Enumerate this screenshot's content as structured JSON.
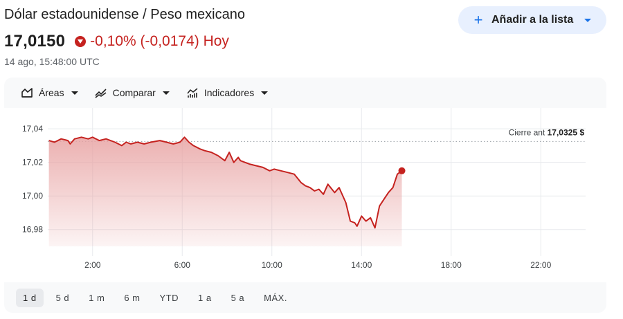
{
  "header": {
    "title": "Dólar estadounidense / Peso mexicano",
    "price": "17,0150",
    "change": "-0,10% (-0,0174) Hoy",
    "timestamp": "14 ago, 15:48:00 UTC",
    "add_button_label": "Añadir a la lista",
    "add_icon": "plus-icon"
  },
  "toolbar": {
    "items": [
      {
        "label": "Áreas",
        "icon": "area-chart-icon"
      },
      {
        "label": "Comparar",
        "icon": "compare-icon"
      },
      {
        "label": "Indicadores",
        "icon": "indicators-icon"
      }
    ]
  },
  "ranges": [
    {
      "label": "1 d",
      "active": true
    },
    {
      "label": "5 d",
      "active": false
    },
    {
      "label": "1 m",
      "active": false
    },
    {
      "label": "6 m",
      "active": false
    },
    {
      "label": "YTD",
      "active": false
    },
    {
      "label": "1 a",
      "active": false
    },
    {
      "label": "5 a",
      "active": false
    },
    {
      "label": "MÁX.",
      "active": false
    }
  ],
  "colors": {
    "line": "#c5221f",
    "down": "#c5221f",
    "accent": "#1a73e8",
    "area_top": "#e8a3a3"
  },
  "chart_data": {
    "type": "area",
    "x_unit": "hour (UTC)",
    "xlim": [
      0,
      24
    ],
    "ylim": [
      16.97,
      17.045
    ],
    "x_ticks": [
      {
        "value": 2,
        "label": "2:00"
      },
      {
        "value": 6,
        "label": "6:00"
      },
      {
        "value": 10,
        "label": "10:00"
      },
      {
        "value": 14,
        "label": "14:00"
      },
      {
        "value": 18,
        "label": "18:00"
      },
      {
        "value": 22,
        "label": "22:00"
      }
    ],
    "y_ticks": [
      {
        "value": 17.04,
        "label": "17,04"
      },
      {
        "value": 17.02,
        "label": "17,02"
      },
      {
        "value": 17.0,
        "label": "17,00"
      },
      {
        "value": 16.98,
        "label": "16,98"
      }
    ],
    "reference": {
      "value": 17.0325,
      "label": "Cierre ant",
      "value_label": "17,0325 $"
    },
    "series": [
      {
        "x": [
          0.05,
          0.3,
          0.6,
          0.9,
          1.0,
          1.2,
          1.5,
          1.8,
          2.0,
          2.3,
          2.6,
          3.0,
          3.3,
          3.5,
          3.7,
          4.0,
          4.3,
          4.6,
          5.0,
          5.3,
          5.6,
          5.9,
          6.1,
          6.3,
          6.5,
          6.8,
          7.0,
          7.3,
          7.6,
          7.9,
          8.1,
          8.3,
          8.5,
          8.6,
          8.8,
          9.0,
          9.3,
          9.6,
          9.9,
          10.1,
          10.4,
          10.7,
          11.0,
          11.3,
          11.5,
          11.7,
          11.9,
          12.1,
          12.3,
          12.5,
          12.8,
          13.0,
          13.3,
          13.5,
          13.7,
          13.8,
          14.0,
          14.2,
          14.4,
          14.6,
          14.8,
          15.0,
          15.2,
          15.4,
          15.6,
          15.8
        ],
        "y": [
          17.033,
          17.032,
          17.034,
          17.033,
          17.031,
          17.034,
          17.035,
          17.034,
          17.035,
          17.033,
          17.034,
          17.032,
          17.03,
          17.032,
          17.031,
          17.032,
          17.031,
          17.032,
          17.033,
          17.032,
          17.031,
          17.032,
          17.035,
          17.032,
          17.03,
          17.028,
          17.027,
          17.026,
          17.024,
          17.021,
          17.026,
          17.02,
          17.023,
          17.021,
          17.02,
          17.019,
          17.018,
          17.017,
          17.015,
          17.016,
          17.015,
          17.014,
          17.013,
          17.008,
          17.006,
          17.005,
          17.003,
          17.004,
          17.001,
          17.007,
          17.002,
          17.005,
          16.996,
          16.985,
          16.984,
          16.982,
          16.988,
          16.985,
          16.987,
          16.981,
          16.994,
          16.998,
          17.002,
          17.005,
          17.013,
          17.015
        ]
      }
    ]
  }
}
